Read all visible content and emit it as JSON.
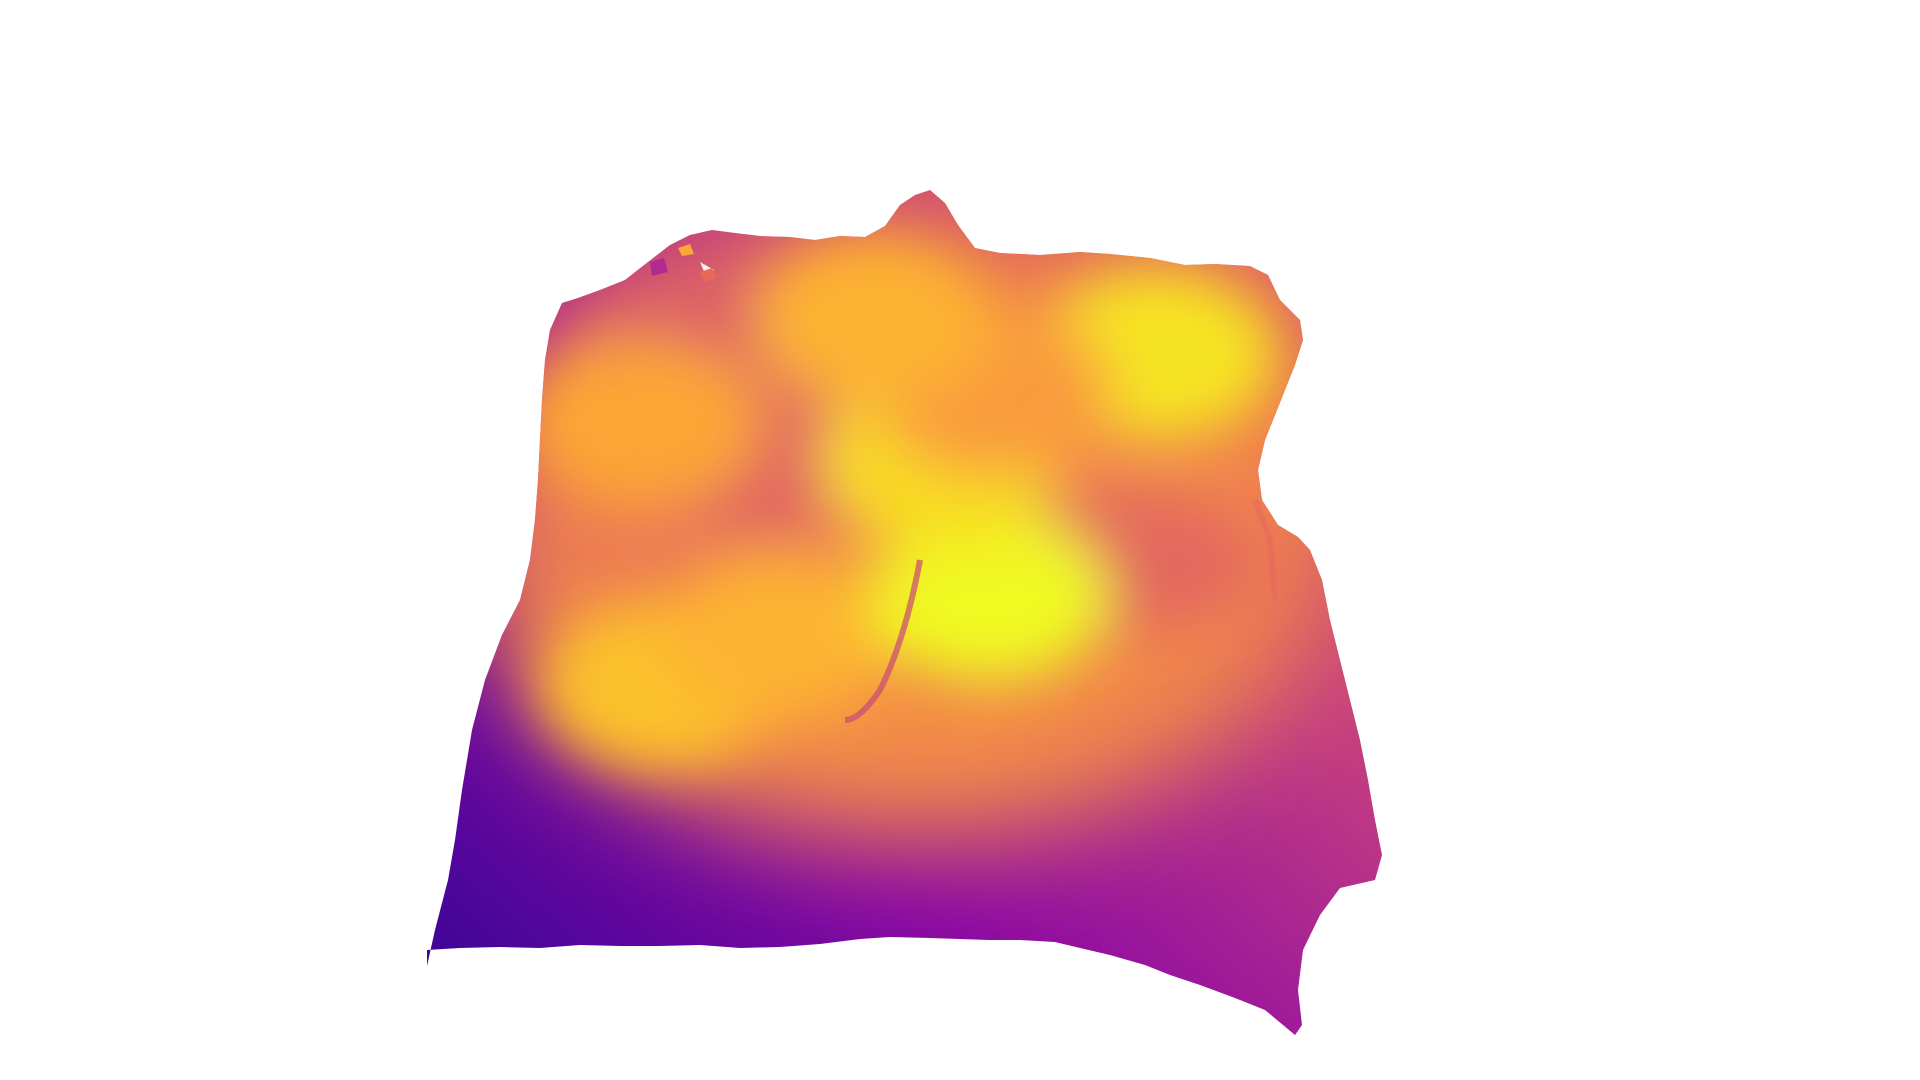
{
  "chart_data": {
    "type": "surface",
    "colorscale": "plasma",
    "colors": {
      "min": "#2a0593",
      "low": "#6a00a8",
      "mid_low": "#b12a90",
      "mid": "#e16462",
      "mid_high": "#fca636",
      "max": "#f0f921"
    },
    "show_axes": false,
    "show_grid": false,
    "show_legend": false,
    "z_range": [
      0,
      1
    ],
    "peaks": [
      {
        "x": 0.2,
        "y": 0.62,
        "z": 0.92
      },
      {
        "x": 0.35,
        "y": 0.55,
        "z": 0.9
      },
      {
        "x": 0.62,
        "y": 0.5,
        "z": 1.0
      },
      {
        "x": 0.55,
        "y": 0.28,
        "z": 0.96
      },
      {
        "x": 0.85,
        "y": 0.12,
        "z": 0.97
      },
      {
        "x": 0.62,
        "y": 0.17,
        "z": 0.86
      },
      {
        "x": 0.14,
        "y": 0.2,
        "z": 0.88
      },
      {
        "x": 0.45,
        "y": 0.05,
        "z": 0.9
      }
    ],
    "valleys": [
      {
        "x": 0.25,
        "y": 0.08,
        "z": 0.72
      },
      {
        "x": 0.34,
        "y": 0.28,
        "z": 0.75
      },
      {
        "x": 0.78,
        "y": 0.45,
        "z": 0.76
      }
    ]
  }
}
